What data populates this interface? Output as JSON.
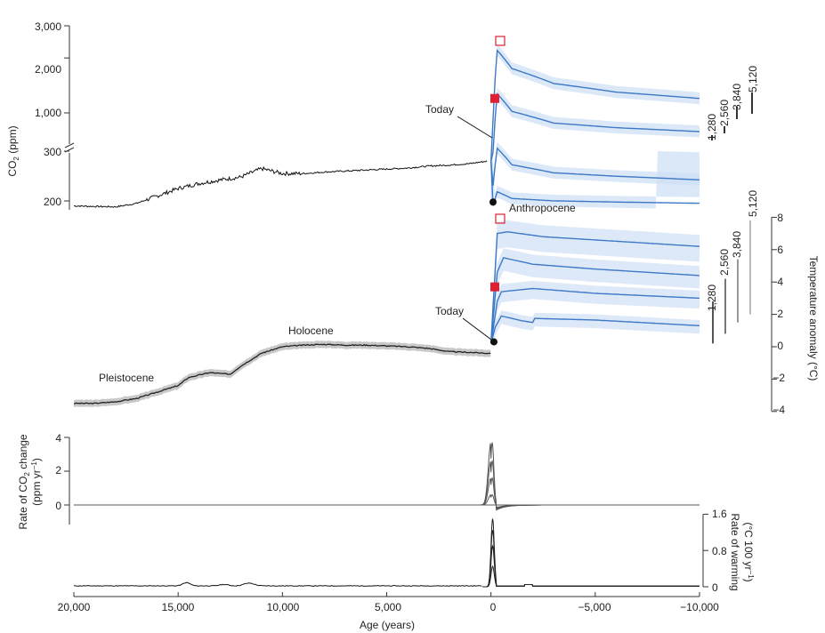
{
  "chart_data": [
    {
      "panel": "co2",
      "type": "line",
      "ylabel": "CO2 (ppm)",
      "ylabel_main": "CO",
      "ylabel_sub": "2",
      "ylabel_unit": " (ppm)",
      "y_scale": "log with axis break",
      "yticks": [
        "3,000",
        "2,000",
        "1,000",
        "300",
        "200"
      ],
      "xlim": [
        20000,
        -10000
      ],
      "annotations": {
        "today": "Today"
      },
      "scenario_labels": [
        "1,280",
        "2,560",
        "3,840",
        "5,120"
      ],
      "paleo_record": {
        "age": [
          20000,
          19000,
          18000,
          17000,
          16000,
          15000,
          14000,
          13000,
          12000,
          11000,
          10000,
          9000,
          8000,
          7000,
          6000,
          5000,
          4000,
          3000,
          2000,
          1000,
          200
        ],
        "co2": [
          190,
          189,
          188,
          195,
          210,
          225,
          235,
          242,
          248,
          265,
          255,
          255,
          258,
          260,
          262,
          264,
          266,
          270,
          272,
          275,
          280
        ]
      },
      "projections": [
        {
          "name": "1,280",
          "age": [
            0,
            -300,
            -1000,
            -3000,
            -6000,
            -10000
          ],
          "co2": [
            280,
            370,
            340,
            330,
            325,
            320
          ]
        },
        {
          "name": "2,560",
          "age": [
            0,
            -300,
            -1000,
            -3000,
            -6000,
            -10000
          ],
          "co2": [
            280,
            640,
            520,
            470,
            450,
            430
          ]
        },
        {
          "name": "3,840",
          "age": [
            0,
            -300,
            -1000,
            -3000,
            -6000,
            -10000
          ],
          "co2": [
            280,
            1270,
            1020,
            880,
            830,
            790
          ]
        },
        {
          "name": "5,120",
          "age": [
            0,
            -300,
            -1000,
            -3000,
            -6000,
            -10000
          ],
          "co2": [
            280,
            2200,
            1750,
            1450,
            1300,
            1200
          ]
        }
      ],
      "markers": {
        "today_co2": 325,
        "filled_square_co2": 1200,
        "open_square_co2": 2700
      }
    },
    {
      "panel": "temperature",
      "type": "line",
      "ylabel": "Temperature anomaly (°C)",
      "yticks": [
        "8",
        "6",
        "4",
        "2",
        "0",
        "−2",
        "−4"
      ],
      "ylim": [
        -4,
        8
      ],
      "xlim": [
        20000,
        -10000
      ],
      "annotations": {
        "pleistocene": "Pleistocene",
        "holocene": "Holocene",
        "anthropocene": "Anthropocene",
        "today": "Today"
      },
      "scenario_labels": [
        "1,280",
        "2,560",
        "3,840",
        "5,120"
      ],
      "scenario_ranges": [
        [
          0.2,
          2.8
        ],
        [
          0.8,
          4.2
        ],
        [
          1.5,
          5.4
        ],
        [
          2.0,
          7.8
        ]
      ],
      "paleo_record": {
        "age": [
          20000,
          19000,
          18000,
          17000,
          16000,
          15000,
          14500,
          13500,
          12500,
          12000,
          11000,
          10000,
          9000,
          8000,
          7000,
          6000,
          5000,
          4000,
          3000,
          2000,
          1000,
          200
        ],
        "temp": [
          -3.5,
          -3.5,
          -3.4,
          -3.2,
          -2.8,
          -2.4,
          -1.9,
          -1.6,
          -1.7,
          -1.2,
          -0.4,
          0.0,
          0.1,
          0.15,
          0.1,
          0.1,
          0.05,
          0.0,
          -0.1,
          -0.3,
          -0.35,
          -0.4
        ]
      },
      "projections": [
        {
          "name": "1,280",
          "age": [
            0,
            -200,
            -500,
            -1500,
            -2000,
            -2100,
            -5000,
            -10000
          ],
          "temp": [
            0.2,
            1.2,
            1.9,
            1.6,
            1.5,
            1.75,
            1.65,
            1.3
          ]
        },
        {
          "name": "2,560",
          "age": [
            0,
            -300,
            -500,
            -2000,
            -5000,
            -10000
          ],
          "temp": [
            0.2,
            2.8,
            3.4,
            3.6,
            3.3,
            3.0
          ]
        },
        {
          "name": "3,840",
          "age": [
            0,
            -300,
            -600,
            -2000,
            -5000,
            -10000
          ],
          "temp": [
            0.2,
            4.6,
            5.5,
            5.1,
            4.8,
            4.4
          ]
        },
        {
          "name": "5,120",
          "age": [
            0,
            -300,
            -800,
            -2500,
            -5000,
            -10000
          ],
          "temp": [
            0.2,
            7.0,
            7.1,
            6.8,
            6.6,
            6.2
          ]
        }
      ],
      "markers": {
        "today_temp": 0.3,
        "filled_square_temp": 3.7,
        "open_square_temp": 8.2
      }
    },
    {
      "panel": "co2_rate",
      "type": "line",
      "ylabel": "Rate of CO2 change (ppm yr−1)",
      "ylabel_l1": "Rate of CO",
      "ylabel_l1_sub": "2",
      "ylabel_l1_end": " change",
      "ylabel_l2": "(ppm yr",
      "ylabel_l2_sup": "−1",
      "ylabel_l2_end": ")",
      "yticks": [
        "4",
        "2",
        "0"
      ],
      "ylim": [
        0,
        4
      ],
      "xlim": [
        20000,
        -10000
      ],
      "peaks": [
        0.6,
        1.6,
        2.6,
        3.7
      ]
    },
    {
      "panel": "warming_rate",
      "type": "line",
      "ylabel": "Rate of warming (°C 100 yr−1)",
      "ylabel_l1": "Rate of warming",
      "ylabel_l2": "(°C 100 yr",
      "ylabel_l2_sup": "−1",
      "ylabel_l2_end": ")",
      "yticks": [
        "1.6",
        "0.8",
        "0"
      ],
      "ylim": [
        0,
        1.6
      ],
      "peaks": [
        0.45,
        0.9,
        1.25,
        1.5
      ],
      "xticks": [
        "20,000",
        "15,000",
        "10,000",
        "5,000",
        "0",
        "−5,000",
        "−10,000"
      ],
      "xlabel": "Age (years)",
      "xlim": [
        20000,
        -10000
      ]
    }
  ]
}
